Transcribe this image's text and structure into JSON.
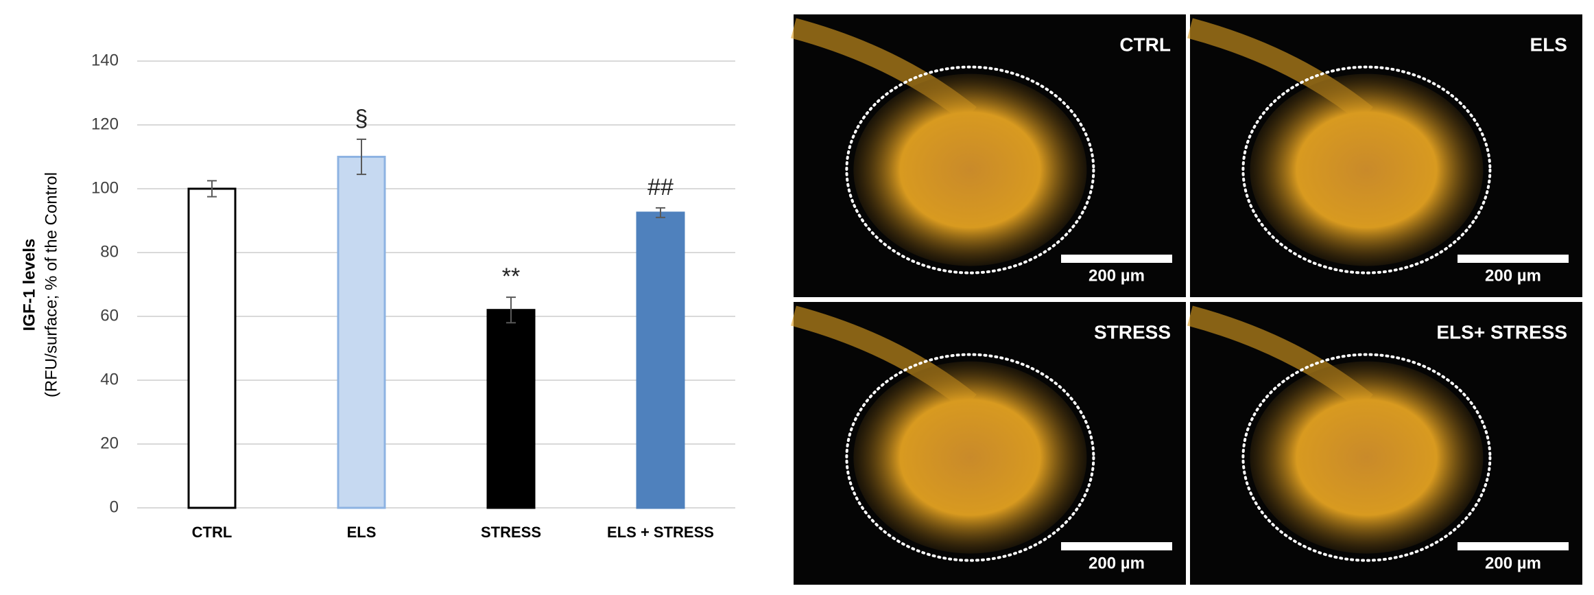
{
  "chart_data": {
    "type": "bar",
    "y_label_line1": "IGF-1 levels",
    "y_label_line2": "(RFU/surface; % of the Control",
    "categories": [
      "CTRL",
      "ELS",
      "STRESS",
      "ELS + STRESS"
    ],
    "values": [
      100,
      110,
      62,
      92.5
    ],
    "errors": [
      2.5,
      5.5,
      4,
      1.5
    ],
    "annotations": [
      null,
      "§",
      "**",
      "##"
    ],
    "colors": [
      "#ffffff",
      "#c6d9f1",
      "#000000",
      "#4f81bd"
    ],
    "edge_colors": [
      "#000000",
      "#8db3e2",
      "#000000",
      "#4f81bd"
    ],
    "ylim": [
      0,
      140
    ],
    "yticks": [
      0,
      20,
      40,
      60,
      80,
      100,
      120,
      140
    ],
    "grid": true
  },
  "panels": [
    {
      "label": "CTRL",
      "scale_bar": "200 µm"
    },
    {
      "label": "ELS",
      "scale_bar": "200 µm"
    },
    {
      "label": "STRESS",
      "scale_bar": "200 µm"
    },
    {
      "label": "ELS+ STRESS",
      "scale_bar": "200 µm"
    }
  ]
}
